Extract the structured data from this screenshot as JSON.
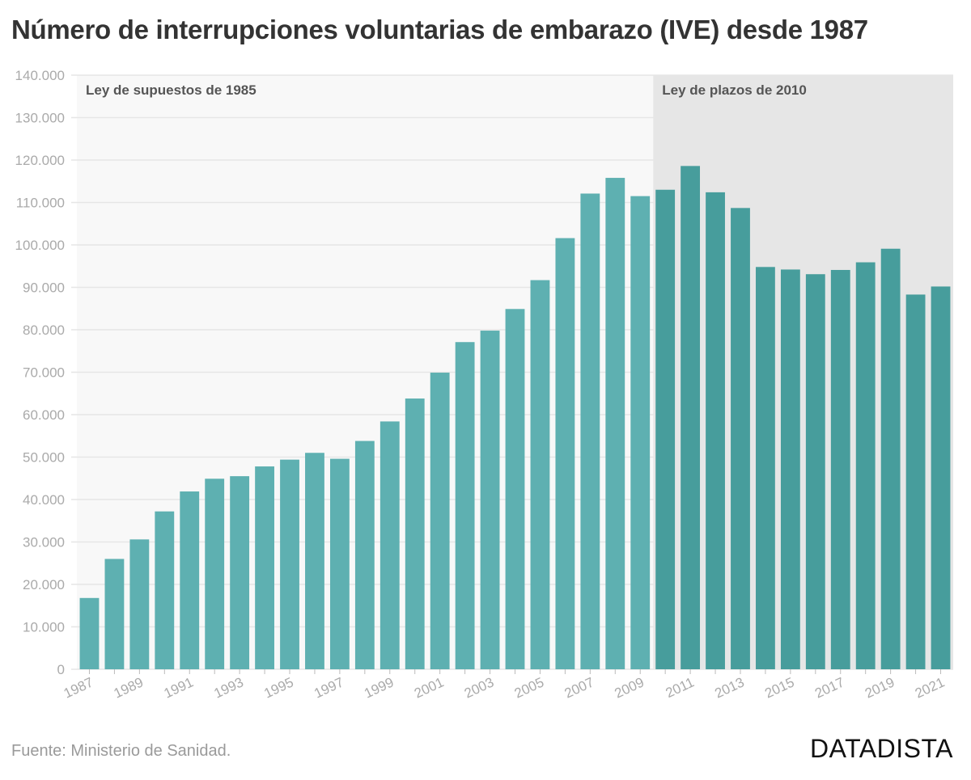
{
  "title": "Número de interrupciones voluntarias de embarazo (IVE) desde 1987",
  "source": "Fuente: Ministerio de Sanidad.",
  "brand": "DATADISTA",
  "colors": {
    "bar_period1": "#5eb0b1",
    "bar_period2": "#479d9c",
    "band_period1": "#f8f8f8",
    "band_period2": "#e6e6e6",
    "grid": "#e6e6e6",
    "tick_label": "#aaaaaa"
  },
  "chart_data": {
    "type": "bar",
    "categories": [
      "1987",
      "1988",
      "1989",
      "1990",
      "1991",
      "1992",
      "1993",
      "1994",
      "1995",
      "1996",
      "1997",
      "1998",
      "1999",
      "2000",
      "2001",
      "2002",
      "2003",
      "2004",
      "2005",
      "2006",
      "2007",
      "2008",
      "2009",
      "2010",
      "2011",
      "2012",
      "2013",
      "2014",
      "2015",
      "2016",
      "2017",
      "2018",
      "2019",
      "2020",
      "2021"
    ],
    "values": [
      16800,
      26000,
      30600,
      37200,
      41900,
      44900,
      45500,
      47800,
      49400,
      51000,
      49600,
      53800,
      58400,
      63800,
      69900,
      77100,
      79800,
      84900,
      91700,
      101600,
      112100,
      115800,
      111500,
      113000,
      118600,
      112400,
      108700,
      94800,
      94200,
      93100,
      94100,
      95900,
      99100,
      88300,
      90200
    ],
    "ylim": [
      0,
      140000
    ],
    "yticks": [
      0,
      10000,
      20000,
      30000,
      40000,
      50000,
      60000,
      70000,
      80000,
      90000,
      100000,
      110000,
      120000,
      130000,
      140000
    ],
    "ytick_labels": [
      "0",
      "10.000",
      "20.000",
      "30.000",
      "40.000",
      "50.000",
      "60.000",
      "70.000",
      "80.000",
      "90.000",
      "100.000",
      "110.000",
      "120.000",
      "130.000",
      "140.000"
    ],
    "xtick_labels": [
      "1987",
      "1989",
      "1991",
      "1993",
      "1995",
      "1997",
      "1999",
      "2001",
      "2003",
      "2005",
      "2007",
      "2009",
      "2011",
      "2013",
      "2015",
      "2017",
      "2019",
      "2021"
    ],
    "periods": [
      {
        "label": "Ley de supuestos de 1985",
        "from": "1987",
        "to": "2009"
      },
      {
        "label": "Ley de plazos de 2010",
        "from": "2010",
        "to": "2021"
      }
    ],
    "grid": true,
    "xlabel": "",
    "ylabel": ""
  }
}
